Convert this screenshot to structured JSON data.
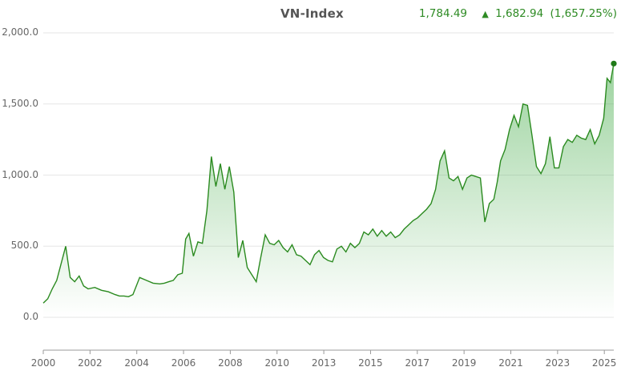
{
  "header": {
    "title": "VN-Index",
    "last_value": "1,784.49",
    "change_arrow": "▲",
    "change_value": "1,682.94",
    "change_percent": "(1,657.25%)"
  },
  "colors": {
    "line": "#2a8a1f",
    "fill_top": "#4caf50",
    "text_green": "#2e8b24",
    "grid": "#e6e6e6",
    "axis": "#999999"
  },
  "chart_data": {
    "type": "area",
    "title": "VN-Index",
    "xlabel": "",
    "ylabel": "",
    "ylim": [
      -250,
      2000
    ],
    "yticks": [
      "2,000.0",
      "1,500.0",
      "1,000.0",
      "500.0",
      "0.0"
    ],
    "xticks": [
      "2000",
      "2002",
      "2004",
      "2006",
      "2008",
      "2010",
      "2013",
      "2015",
      "2017",
      "2019",
      "2021",
      "2023",
      "2025"
    ],
    "grid": true,
    "legend": "none",
    "series": [
      {
        "name": "VN-Index",
        "x": [
          2000.0,
          2000.2,
          2000.4,
          2000.6,
          2000.8,
          2001.0,
          2001.2,
          2001.4,
          2001.6,
          2001.8,
          2002.0,
          2002.3,
          2002.6,
          2002.9,
          2003.2,
          2003.4,
          2003.6,
          2003.8,
          2004.0,
          2004.3,
          2004.6,
          2004.9,
          2005.2,
          2005.4,
          2005.6,
          2005.8,
          2006.0,
          2006.2,
          2006.35,
          2006.5,
          2006.7,
          2006.9,
          2007.1,
          2007.3,
          2007.5,
          2007.7,
          2007.9,
          2008.1,
          2008.3,
          2008.5,
          2008.7,
          2008.9,
          2009.1,
          2009.3,
          2009.5,
          2009.7,
          2009.9,
          2010.1,
          2010.3,
          2010.5,
          2010.7,
          2010.9,
          2011.1,
          2011.3,
          2011.5,
          2011.7,
          2011.9,
          2012.1,
          2012.3,
          2012.5,
          2012.7,
          2012.9,
          2013.1,
          2013.3,
          2013.5,
          2013.7,
          2013.9,
          2014.1,
          2014.3,
          2014.5,
          2014.7,
          2014.9,
          2015.1,
          2015.3,
          2015.5,
          2015.7,
          2015.9,
          2016.1,
          2016.3,
          2016.5,
          2016.7,
          2016.9,
          2017.1,
          2017.3,
          2017.5,
          2017.7,
          2017.9,
          2018.1,
          2018.3,
          2018.5,
          2018.7,
          2018.9,
          2019.1,
          2019.3,
          2019.5,
          2019.7,
          2019.9,
          2020.1,
          2020.25,
          2020.4,
          2020.6,
          2020.8,
          2021.0,
          2021.2,
          2021.4,
          2021.6,
          2021.8,
          2022.0,
          2022.2,
          2022.4,
          2022.6,
          2022.8,
          2023.0,
          2023.2,
          2023.4,
          2023.6,
          2023.8,
          2024.0,
          2024.2,
          2024.4,
          2024.6,
          2024.8,
          2025.0,
          2025.15,
          2025.3,
          2025.45
        ],
        "values": [
          100,
          130,
          200,
          260,
          380,
          500,
          280,
          250,
          290,
          220,
          200,
          210,
          190,
          180,
          160,
          150,
          150,
          145,
          160,
          280,
          260,
          240,
          235,
          240,
          250,
          260,
          300,
          310,
          550,
          590,
          430,
          530,
          520,
          750,
          1130,
          920,
          1080,
          900,
          1060,
          880,
          420,
          540,
          350,
          300,
          250,
          420,
          580,
          520,
          510,
          540,
          490,
          460,
          510,
          440,
          430,
          400,
          370,
          440,
          470,
          420,
          400,
          390,
          480,
          500,
          460,
          520,
          490,
          520,
          600,
          580,
          620,
          570,
          610,
          570,
          600,
          560,
          580,
          620,
          650,
          680,
          700,
          730,
          760,
          800,
          900,
          1100,
          1170,
          980,
          960,
          990,
          900,
          980,
          1000,
          990,
          980,
          670,
          800,
          830,
          950,
          1100,
          1180,
          1320,
          1420,
          1340,
          1500,
          1490,
          1280,
          1060,
          1010,
          1080,
          1270,
          1050,
          1050,
          1200,
          1250,
          1230,
          1280,
          1260,
          1250,
          1320,
          1220,
          1280,
          1400,
          1680,
          1650,
          1784
        ]
      }
    ],
    "last_point_marker": 1784.49
  }
}
